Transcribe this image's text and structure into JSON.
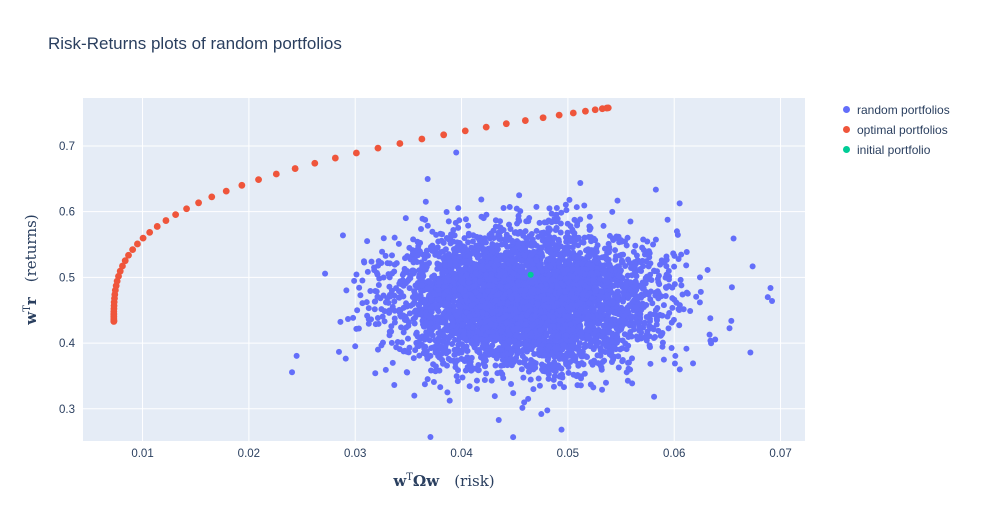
{
  "title": "Risk-Returns plots of random portfolios",
  "colors": {
    "plot_bg": "#e5ecf6",
    "grid": "#ffffff",
    "text": "#2a3f5f",
    "random": "#636efa",
    "optimal": "#ef553b",
    "initial": "#00cc96"
  },
  "legend": {
    "items": [
      {
        "label": "random portfolios",
        "color": "#636efa"
      },
      {
        "label": "optimal portfolios",
        "color": "#ef553b"
      },
      {
        "label": "initial portfolio",
        "color": "#00cc96"
      }
    ]
  },
  "chart_data": {
    "type": "scatter",
    "title": "Risk-Returns plots of random portfolios",
    "xlabel": {
      "base": "w",
      "sup": "T",
      "base2": "Ωw",
      "suffix": "(risk)"
    },
    "ylabel": {
      "base": "w",
      "sup": "T",
      "base2": "r",
      "suffix": "(returns)"
    },
    "x_range": [
      0.0044,
      0.0723
    ],
    "y_range": [
      0.251,
      0.773
    ],
    "x_ticks": [
      0.01,
      0.02,
      0.03,
      0.04,
      0.05,
      0.06,
      0.07
    ],
    "x_tick_labels": [
      "0.01",
      "0.02",
      "0.03",
      "0.04",
      "0.05",
      "0.06",
      "0.07"
    ],
    "y_ticks": [
      0.3,
      0.4,
      0.5,
      0.6,
      0.7
    ],
    "y_tick_labels": [
      "0.3",
      "0.4",
      "0.5",
      "0.6",
      "0.7"
    ],
    "grid": true,
    "legend_position": "right",
    "series": [
      {
        "name": "random portfolios",
        "type": "gaussian_cloud",
        "color": "#636efa",
        "marker_size": 3,
        "count": 5000,
        "center": [
          0.046,
          0.467
        ],
        "std": [
          0.006,
          0.05
        ],
        "seed": 1337,
        "extra_points": [
          [
            0.0395,
            0.69
          ],
          [
            0.0688,
            0.47
          ],
          [
            0.0692,
            0.464
          ],
          [
            0.0435,
            0.283
          ],
          [
            0.0475,
            0.292
          ]
        ]
      },
      {
        "name": "optimal portfolios",
        "type": "points",
        "color": "#ef553b",
        "marker_size": 3.4,
        "x": [
          0.0073,
          0.0073,
          0.0073,
          0.0073,
          0.0073,
          0.0073,
          0.0073,
          0.0073,
          0.00731,
          0.00732,
          0.00733,
          0.00736,
          0.00739,
          0.00744,
          0.00752,
          0.00761,
          0.00774,
          0.0079,
          0.00811,
          0.00837,
          0.00868,
          0.00907,
          0.00952,
          0.01005,
          0.01067,
          0.01138,
          0.0122,
          0.01311,
          0.01414,
          0.01527,
          0.01651,
          0.01787,
          0.01934,
          0.02091,
          0.02258,
          0.02435,
          0.0262,
          0.02813,
          0.03011,
          0.03214,
          0.0342,
          0.03627,
          0.03832,
          0.04035,
          0.04232,
          0.04421,
          0.046,
          0.04767,
          0.04918,
          0.05051,
          0.05165,
          0.05257,
          0.05324,
          0.05366,
          0.0538
        ],
        "y": [
          0.433,
          0.4333,
          0.4343,
          0.4359,
          0.4381,
          0.4408,
          0.4441,
          0.448,
          0.4523,
          0.4571,
          0.4623,
          0.468,
          0.474,
          0.4804,
          0.4872,
          0.4943,
          0.5017,
          0.5094,
          0.5173,
          0.5254,
          0.5337,
          0.5422,
          0.5509,
          0.5597,
          0.5685,
          0.5775,
          0.5865,
          0.5955,
          0.6045,
          0.6135,
          0.6225,
          0.6313,
          0.6401,
          0.6488,
          0.6573,
          0.6656,
          0.6737,
          0.6816,
          0.6893,
          0.6967,
          0.7038,
          0.7106,
          0.717,
          0.723,
          0.7287,
          0.7339,
          0.7387,
          0.743,
          0.7469,
          0.7502,
          0.7529,
          0.7551,
          0.7567,
          0.7577,
          0.758
        ]
      },
      {
        "name": "initial portfolio",
        "type": "points",
        "color": "#00cc96",
        "marker_size": 3,
        "x": [
          0.0465
        ],
        "y": [
          0.504
        ]
      }
    ]
  }
}
